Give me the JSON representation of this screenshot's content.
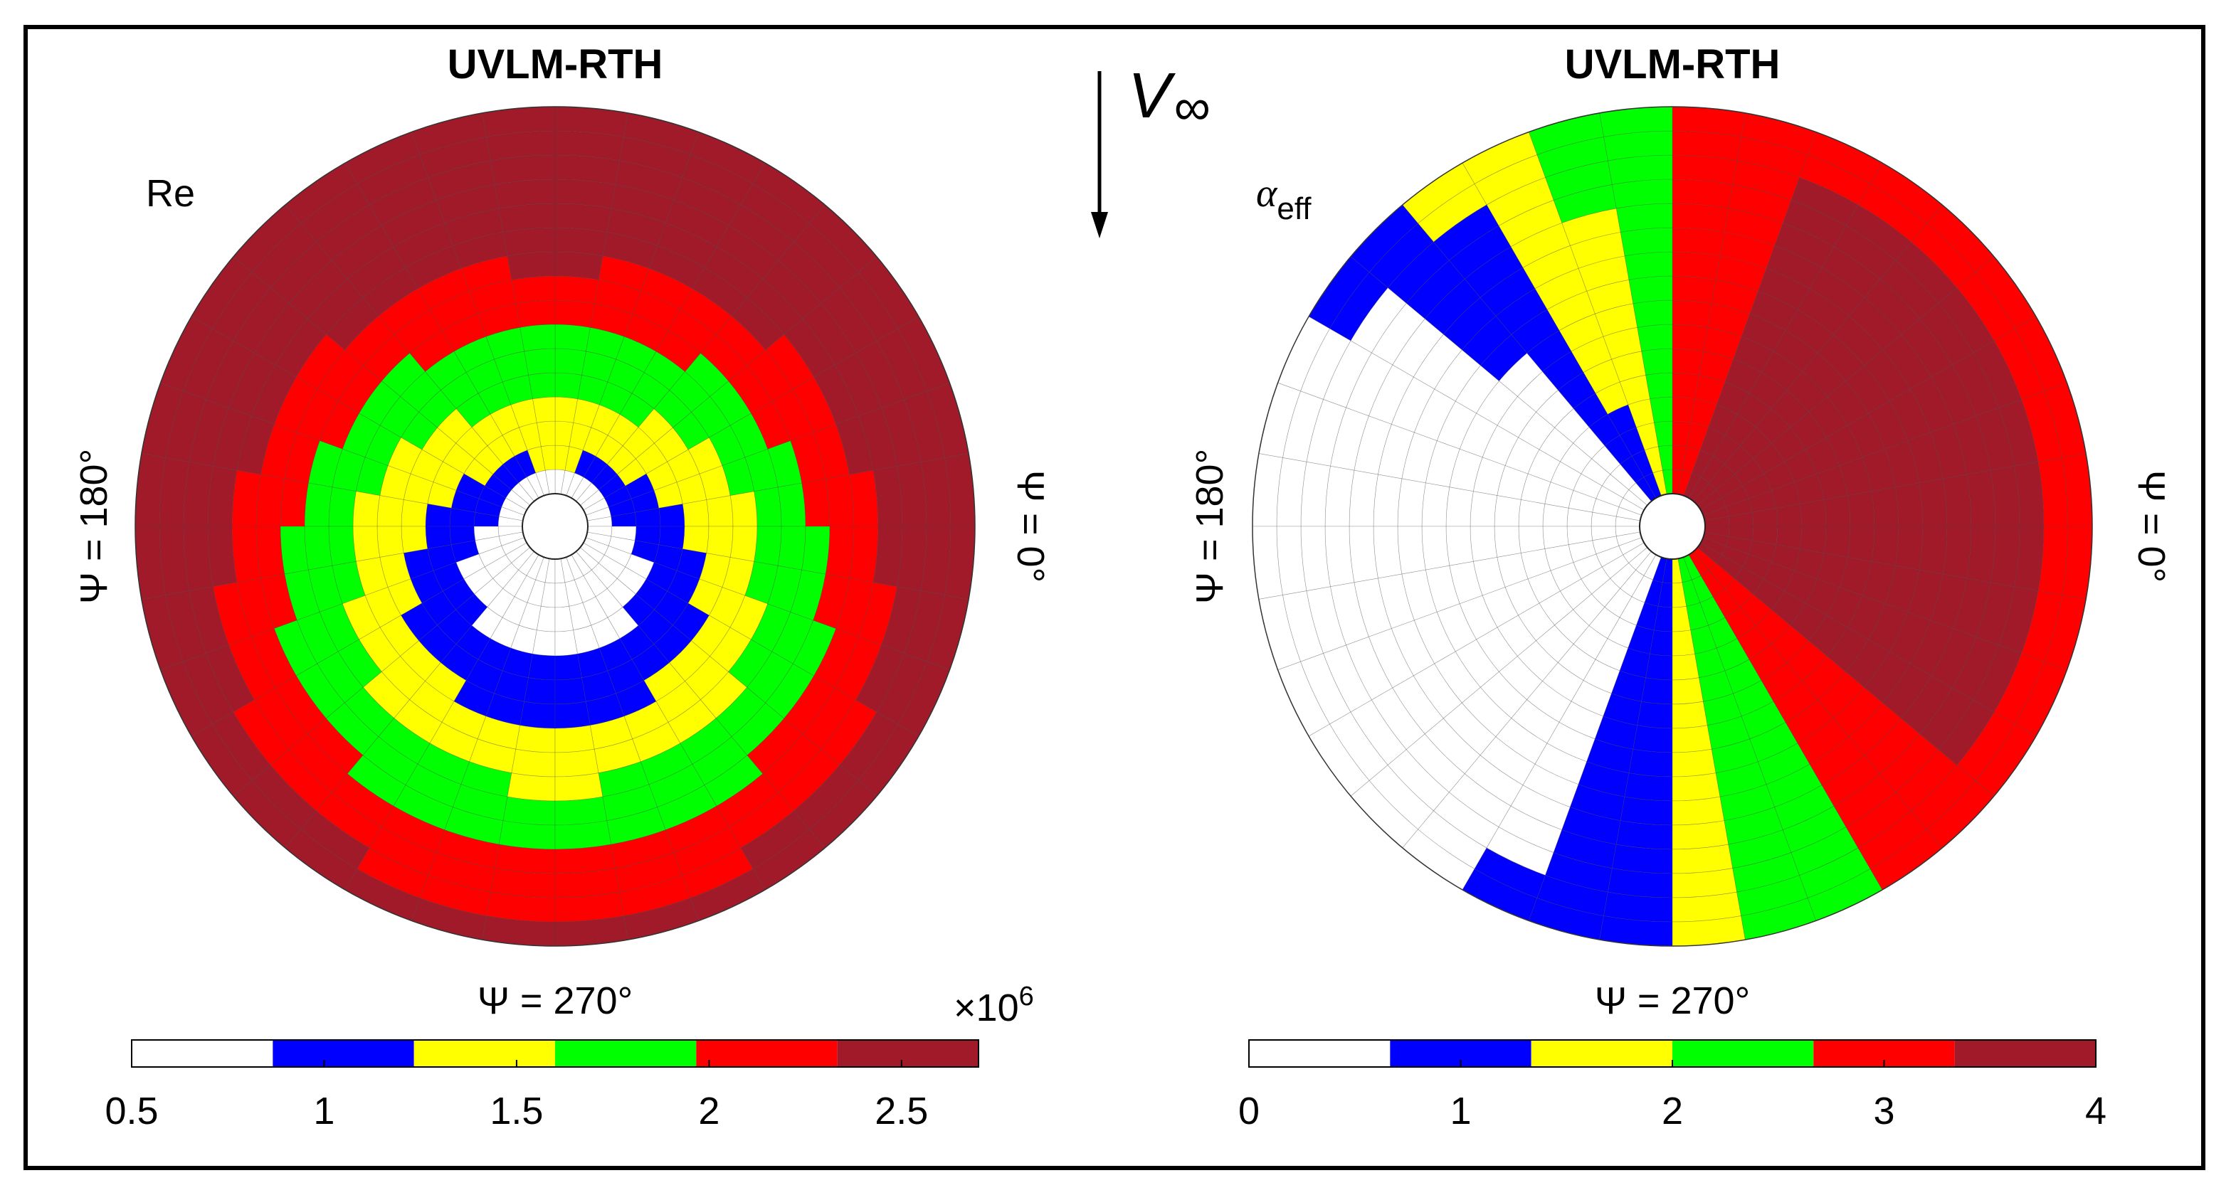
{
  "chart_data": [
    {
      "type": "heatmap",
      "subtype": "polar-rotor-disk",
      "title": "UVLM-RTH",
      "quantity_label": "Re",
      "azimuth_labels": {
        "right": "Ψ = 0°",
        "left": "Ψ = 180°",
        "bottom": "Ψ = 270°"
      },
      "colorbar": {
        "ticks": [
          "0.5",
          "1",
          "1.5",
          "2",
          "2.5"
        ],
        "tick_values": [
          0.5,
          1,
          1.5,
          2,
          2.5
        ],
        "range": [
          0.5,
          2.7
        ],
        "multiplier": "×10",
        "multiplier_exponent": "6",
        "bins": 6
      },
      "radial_bands_relative_radius": [
        0.0,
        0.16,
        0.3,
        0.43,
        0.57,
        0.71,
        0.86,
        1.0
      ],
      "band_levels": [
        "hub",
        "white",
        "blue",
        "yellow",
        "green",
        "red",
        "maroon"
      ],
      "description": "Concentric rings increasing outward; rings shifted toward psi=90 (advancing side larger)."
    },
    {
      "type": "heatmap",
      "subtype": "polar-rotor-disk",
      "title": "UVLM-RTH",
      "quantity_label": "α",
      "quantity_label_sub": "eff",
      "azimuth_labels": {
        "right": "Ψ = 0°",
        "left": "Ψ = 180°",
        "bottom": "Ψ = 270°"
      },
      "colorbar": {
        "ticks": [
          "0",
          "1",
          "2",
          "3",
          "4"
        ],
        "tick_values": [
          0,
          1,
          2,
          3,
          4
        ],
        "range": [
          0,
          4
        ],
        "bins": 6
      },
      "description": "Retreating side (psi=180) low alpha_eff (white/blue), advancing side (psi=0) high (red/maroon)."
    }
  ],
  "freestream_label": "V",
  "freestream_sub": "∞",
  "colors": {
    "white": "#ffffff",
    "blue": "#0000ff",
    "yellow": "#ffff00",
    "green": "#00ff00",
    "red": "#ff0000",
    "maroon": "#a01a2a",
    "frame": "#000000"
  }
}
